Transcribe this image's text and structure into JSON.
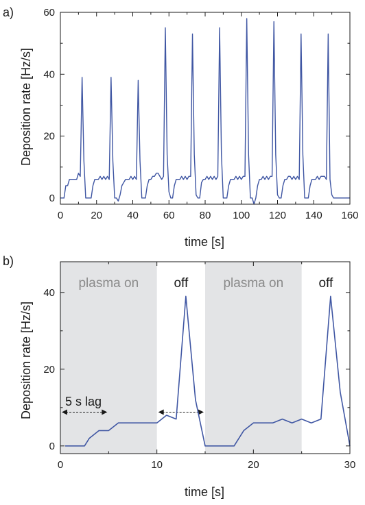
{
  "colors": {
    "series": "#3f56a3",
    "shade": "#e3e4e6",
    "region_text": "#8a8a8a",
    "text": "#1a1a1a"
  },
  "chart_data": [
    {
      "type": "line",
      "panel_label": "a)",
      "xlabel": "time [s]",
      "ylabel": "Deposition rate [Hz/s]",
      "xlim": [
        0,
        160
      ],
      "ylim": [
        -2,
        60
      ],
      "xticks": [
        0,
        20,
        40,
        60,
        80,
        100,
        120,
        140,
        160
      ],
      "yticks": [
        0,
        20,
        40,
        60
      ],
      "grid": false,
      "series": [
        {
          "x": [
            0,
            1,
            2,
            3,
            4,
            5,
            6,
            7,
            8,
            9,
            10,
            11,
            12,
            13,
            14,
            15,
            16,
            17,
            18,
            19,
            20,
            21,
            22,
            23,
            24,
            25,
            26,
            27,
            28,
            29,
            30,
            31,
            32,
            33,
            34,
            35,
            36,
            37,
            38,
            39,
            40,
            41,
            42,
            43,
            44,
            45,
            46,
            47,
            48,
            49,
            50,
            51,
            52,
            53,
            54,
            55,
            56,
            57,
            58,
            59,
            60,
            61,
            62,
            63,
            64,
            65,
            66,
            67,
            68,
            69,
            70,
            71,
            72,
            73,
            74,
            75,
            76,
            77,
            78,
            79,
            80,
            81,
            82,
            83,
            84,
            85,
            86,
            87,
            88,
            89,
            90,
            91,
            92,
            93,
            94,
            95,
            96,
            97,
            98,
            99,
            100,
            101,
            102,
            103,
            104,
            105,
            106,
            107,
            108,
            109,
            110,
            111,
            112,
            113,
            114,
            115,
            116,
            117,
            118,
            119,
            120,
            121,
            122,
            123,
            124,
            125,
            126,
            127,
            128,
            129,
            130,
            131,
            132,
            133,
            134,
            135,
            136,
            137,
            138,
            139,
            140,
            141,
            142,
            143,
            144,
            145,
            146,
            147,
            148,
            149,
            150,
            151,
            152,
            153,
            154,
            155,
            156,
            157,
            158,
            159,
            160
          ],
          "y": [
            0,
            0,
            0,
            4,
            4,
            6,
            6,
            6,
            6,
            6,
            8,
            7,
            39,
            12,
            0,
            0,
            0,
            0,
            4,
            6,
            6,
            6,
            7,
            6,
            7,
            6,
            7,
            6,
            39,
            12,
            0,
            0,
            -1,
            1,
            4,
            5,
            6,
            6,
            6,
            7,
            6,
            7,
            6,
            38,
            12,
            0,
            0,
            0,
            4,
            6,
            6,
            7,
            7,
            8,
            8,
            7,
            6,
            7,
            55,
            14,
            2,
            0,
            0,
            4,
            6,
            6,
            6,
            7,
            6,
            7,
            6,
            7,
            7,
            53,
            14,
            1,
            0,
            0,
            5,
            6,
            6,
            7,
            6,
            7,
            6,
            7,
            6,
            7,
            55,
            14,
            0,
            0,
            0,
            4,
            6,
            6,
            6,
            7,
            6,
            7,
            6,
            7,
            7,
            58,
            14,
            0,
            0,
            -2,
            0,
            4,
            6,
            6,
            7,
            6,
            7,
            6,
            7,
            7,
            57,
            14,
            1,
            0,
            0,
            4,
            6,
            6,
            7,
            7,
            6,
            7,
            6,
            7,
            6,
            53,
            14,
            0,
            0,
            0,
            4,
            6,
            6,
            6,
            7,
            6,
            7,
            7,
            7,
            6,
            53,
            6,
            1,
            0,
            0,
            0,
            0,
            0,
            0,
            0,
            0,
            0,
            0
          ]
        }
      ]
    },
    {
      "type": "line",
      "panel_label": "b)",
      "xlabel": "time [s]",
      "ylabel": "Deposition rate [Hz/s]",
      "xlim": [
        0,
        30
      ],
      "ylim": [
        -2,
        48
      ],
      "xticks": [
        0,
        10,
        20,
        30
      ],
      "yticks": [
        0,
        20,
        40
      ],
      "grid": false,
      "shaded_regions": [
        {
          "x0": 0,
          "x1": 10,
          "label": "plasma on"
        },
        {
          "x0": 15,
          "x1": 25,
          "label": "plasma on"
        }
      ],
      "annotations": [
        {
          "text": "off",
          "x": 12.5,
          "y": 40
        },
        {
          "text": "off",
          "x": 27.5,
          "y": 40
        },
        {
          "text": "5 s lag",
          "x": 0.5,
          "y": 10.5
        }
      ],
      "arrows": [
        {
          "x0": 0,
          "x1": 5,
          "y": 8.8
        },
        {
          "x0": 10,
          "x1": 15,
          "y": 8.8
        }
      ],
      "series": [
        {
          "x": [
            0.5,
            1,
            2,
            2.5,
            3,
            4,
            5,
            6,
            7,
            8,
            9,
            10,
            11,
            12,
            13,
            14,
            15,
            16,
            17,
            18,
            19,
            20,
            21,
            22,
            23,
            24,
            25,
            26,
            27,
            28,
            29,
            30
          ],
          "y": [
            0,
            0,
            0,
            0,
            2,
            4,
            4,
            6,
            6,
            6,
            6,
            6,
            8,
            7,
            39,
            12,
            0,
            0,
            0,
            0,
            4,
            6,
            6,
            6,
            7,
            6,
            7,
            6,
            7,
            39,
            14,
            0
          ]
        }
      ]
    }
  ]
}
